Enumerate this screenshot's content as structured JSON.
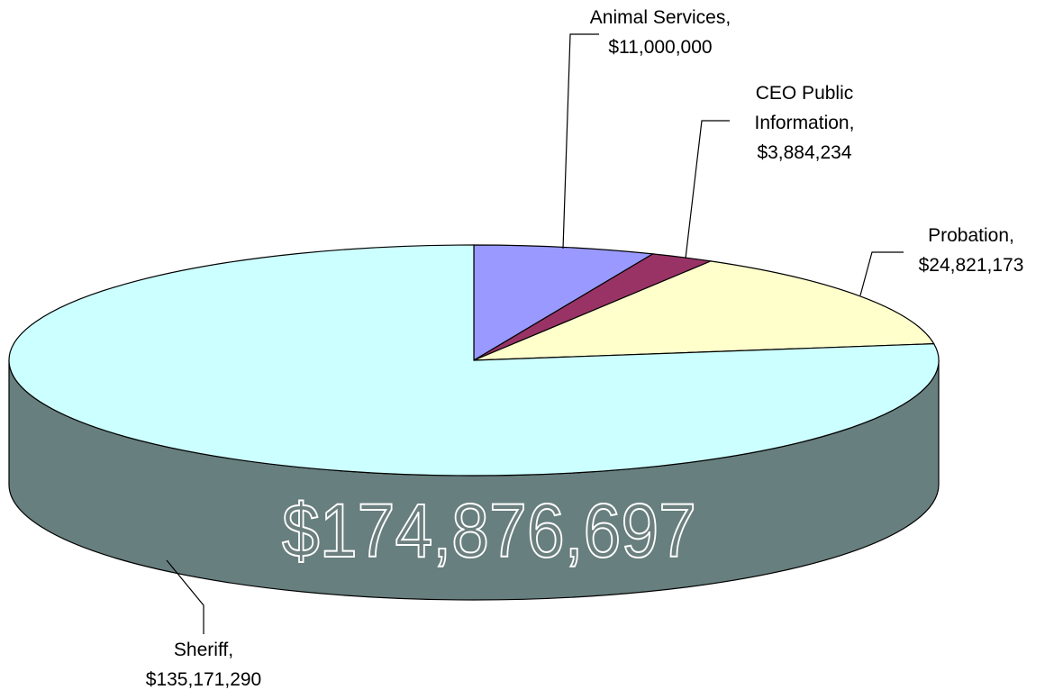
{
  "chart_data": {
    "type": "pie",
    "style": "3d",
    "total_label": "$174,876,697",
    "series": [
      {
        "name": "Animal Services",
        "value_label": "$11,000,000",
        "value": 11000000,
        "color": "#9999ff",
        "label_lines": [
          "Animal Services,",
          "$11,000,000"
        ]
      },
      {
        "name": "CEO Public Information",
        "value_label": "$3,884,234",
        "value": 3884234,
        "color": "#993366",
        "label_lines": [
          "CEO Public",
          "Information,",
          "$3,884,234"
        ]
      },
      {
        "name": "Probation",
        "value_label": "$24,821,173",
        "value": 24821173,
        "color": "#ffffcc",
        "label_lines": [
          "Probation,",
          "$24,821,173"
        ]
      },
      {
        "name": "Sheriff",
        "value_label": "$135,171,290",
        "value": 135171290,
        "color": "#ccffff",
        "label_lines": [
          "Sheriff,",
          "$135,171,290"
        ]
      }
    ],
    "side_color": "#677f7e"
  }
}
